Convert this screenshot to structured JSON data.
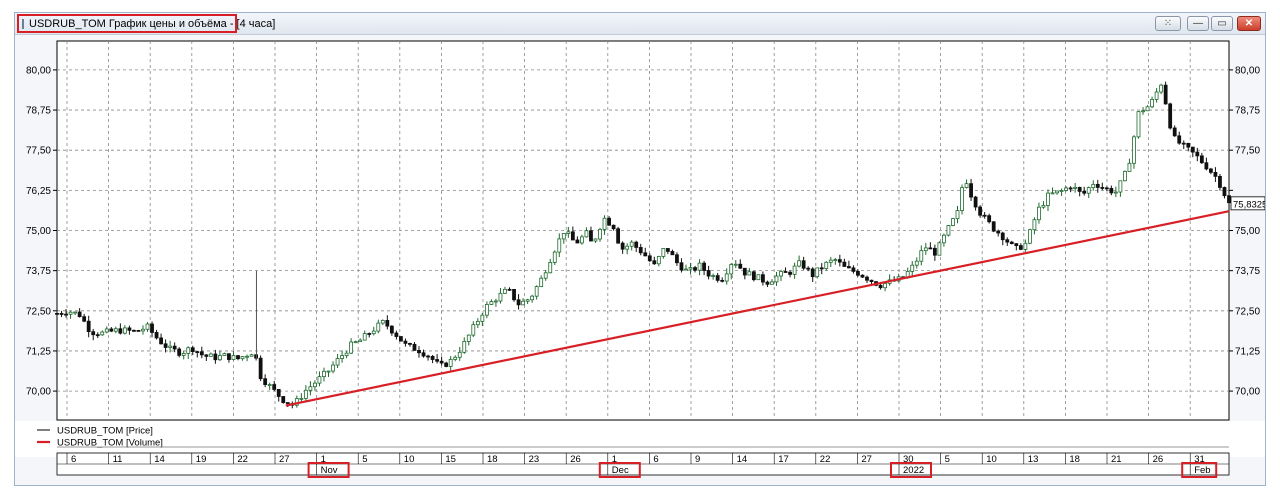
{
  "window": {
    "title": "USDRUB_TOM График цены и объёма - [4 часа]",
    "buttons": {
      "tool_icon": "settings-grid-icon",
      "minimize": "—",
      "restore": "▭",
      "close": "✕"
    }
  },
  "legend": [
    {
      "label": "USDRUB_TOM [Price]",
      "color": "#000000"
    },
    {
      "label": "USDRUB_TOM [Volume]",
      "color": "#d81f26"
    }
  ],
  "chart_data": {
    "type": "candlestick",
    "y_ticks": [
      "80,00",
      "78,75",
      "77,50",
      "76,25",
      "75,00",
      "73,75",
      "72,50",
      "71,25",
      "70,00"
    ],
    "ylim": [
      69.1,
      80.9
    ],
    "last_price": "75,8325",
    "colors": {
      "up": "#1f6a2e",
      "down": "#111111",
      "trendline": "#d81f26",
      "grid": "#888888"
    },
    "day_ticks": [
      "6",
      "11",
      "14",
      "19",
      "22",
      "27",
      "1",
      "5",
      "10",
      "15",
      "18",
      "23",
      "26",
      "1",
      "6",
      "9",
      "14",
      "17",
      "22",
      "27",
      "30",
      "5",
      "10",
      "13",
      "18",
      "21",
      "26",
      "31"
    ],
    "month_labels": [
      "Nov",
      "Dec",
      "2022",
      "Feb"
    ],
    "price_path": [
      {
        "t": 0,
        "v": 72.42
      },
      {
        "t": 0.01,
        "v": 72.5
      },
      {
        "t": 0.02,
        "v": 72.38
      },
      {
        "t": 0.03,
        "v": 71.85
      },
      {
        "t": 0.04,
        "v": 71.8
      },
      {
        "t": 0.055,
        "v": 71.9
      },
      {
        "t": 0.07,
        "v": 71.85
      },
      {
        "t": 0.08,
        "v": 72.0
      },
      {
        "t": 0.09,
        "v": 71.6
      },
      {
        "t": 0.1,
        "v": 71.3
      },
      {
        "t": 0.11,
        "v": 71.2
      },
      {
        "t": 0.12,
        "v": 71.35
      },
      {
        "t": 0.13,
        "v": 71.1
      },
      {
        "t": 0.14,
        "v": 71.05
      },
      {
        "t": 0.15,
        "v": 71.1
      },
      {
        "t": 0.16,
        "v": 71.0
      },
      {
        "t": 0.175,
        "v": 71.25
      },
      {
        "t": 0.18,
        "v": 70.5
      },
      {
        "t": 0.19,
        "v": 70.1
      },
      {
        "t": 0.2,
        "v": 69.75
      },
      {
        "t": 0.21,
        "v": 69.55
      },
      {
        "t": 0.22,
        "v": 70.0
      },
      {
        "t": 0.23,
        "v": 70.3
      },
      {
        "t": 0.24,
        "v": 70.6
      },
      {
        "t": 0.25,
        "v": 71.0
      },
      {
        "t": 0.26,
        "v": 71.4
      },
      {
        "t": 0.27,
        "v": 71.6
      },
      {
        "t": 0.28,
        "v": 71.9
      },
      {
        "t": 0.29,
        "v": 72.15
      },
      {
        "t": 0.3,
        "v": 71.8
      },
      {
        "t": 0.31,
        "v": 71.4
      },
      {
        "t": 0.32,
        "v": 71.3
      },
      {
        "t": 0.33,
        "v": 71.1
      },
      {
        "t": 0.34,
        "v": 70.75
      },
      {
        "t": 0.35,
        "v": 70.95
      },
      {
        "t": 0.36,
        "v": 71.4
      },
      {
        "t": 0.37,
        "v": 72.0
      },
      {
        "t": 0.38,
        "v": 72.6
      },
      {
        "t": 0.39,
        "v": 72.9
      },
      {
        "t": 0.4,
        "v": 73.15
      },
      {
        "t": 0.41,
        "v": 72.7
      },
      {
        "t": 0.42,
        "v": 72.9
      },
      {
        "t": 0.43,
        "v": 73.5
      },
      {
        "t": 0.44,
        "v": 74.3
      },
      {
        "t": 0.45,
        "v": 75.0
      },
      {
        "t": 0.46,
        "v": 74.6
      },
      {
        "t": 0.47,
        "v": 74.9
      },
      {
        "t": 0.475,
        "v": 74.55
      },
      {
        "t": 0.485,
        "v": 75.4
      },
      {
        "t": 0.495,
        "v": 75.1
      },
      {
        "t": 0.5,
        "v": 74.4
      },
      {
        "t": 0.51,
        "v": 74.6
      },
      {
        "t": 0.52,
        "v": 74.3
      },
      {
        "t": 0.53,
        "v": 73.9
      },
      {
        "t": 0.54,
        "v": 74.5
      },
      {
        "t": 0.55,
        "v": 74.0
      },
      {
        "t": 0.56,
        "v": 73.7
      },
      {
        "t": 0.57,
        "v": 73.9
      },
      {
        "t": 0.58,
        "v": 73.6
      },
      {
        "t": 0.59,
        "v": 73.5
      },
      {
        "t": 0.6,
        "v": 74.1
      },
      {
        "t": 0.61,
        "v": 73.7
      },
      {
        "t": 0.62,
        "v": 73.55
      },
      {
        "t": 0.63,
        "v": 73.4
      },
      {
        "t": 0.64,
        "v": 73.6
      },
      {
        "t": 0.65,
        "v": 73.7
      },
      {
        "t": 0.66,
        "v": 74.0
      },
      {
        "t": 0.67,
        "v": 73.6
      },
      {
        "t": 0.68,
        "v": 73.9
      },
      {
        "t": 0.69,
        "v": 74.1
      },
      {
        "t": 0.7,
        "v": 73.8
      },
      {
        "t": 0.71,
        "v": 73.7
      },
      {
        "t": 0.72,
        "v": 73.5
      },
      {
        "t": 0.73,
        "v": 73.3
      },
      {
        "t": 0.74,
        "v": 73.4
      },
      {
        "t": 0.75,
        "v": 73.5
      },
      {
        "t": 0.76,
        "v": 73.9
      },
      {
        "t": 0.77,
        "v": 74.5
      },
      {
        "t": 0.78,
        "v": 74.3
      },
      {
        "t": 0.79,
        "v": 75.0
      },
      {
        "t": 0.8,
        "v": 75.6
      },
      {
        "t": 0.805,
        "v": 76.8
      },
      {
        "t": 0.81,
        "v": 76.2
      },
      {
        "t": 0.82,
        "v": 75.5
      },
      {
        "t": 0.83,
        "v": 75.1
      },
      {
        "t": 0.84,
        "v": 74.8
      },
      {
        "t": 0.85,
        "v": 74.4
      },
      {
        "t": 0.86,
        "v": 74.6
      },
      {
        "t": 0.87,
        "v": 75.6
      },
      {
        "t": 0.88,
        "v": 76.1
      },
      {
        "t": 0.89,
        "v": 76.2
      },
      {
        "t": 0.9,
        "v": 76.4
      },
      {
        "t": 0.91,
        "v": 76.1
      },
      {
        "t": 0.92,
        "v": 76.5
      },
      {
        "t": 0.93,
        "v": 76.3
      },
      {
        "t": 0.94,
        "v": 76.2
      },
      {
        "t": 0.95,
        "v": 76.9
      },
      {
        "t": 0.96,
        "v": 78.7
      },
      {
        "t": 0.97,
        "v": 78.9
      },
      {
        "t": 0.98,
        "v": 79.6
      },
      {
        "t": 0.985,
        "v": 78.8
      },
      {
        "t": 0.99,
        "v": 77.9
      },
      {
        "t": 1.0,
        "v": 77.6
      },
      {
        "t": 1.01,
        "v": 77.35
      },
      {
        "t": 1.02,
        "v": 77.0
      },
      {
        "t": 1.03,
        "v": 76.6
      },
      {
        "t": 1.04,
        "v": 75.83
      }
    ]
  }
}
